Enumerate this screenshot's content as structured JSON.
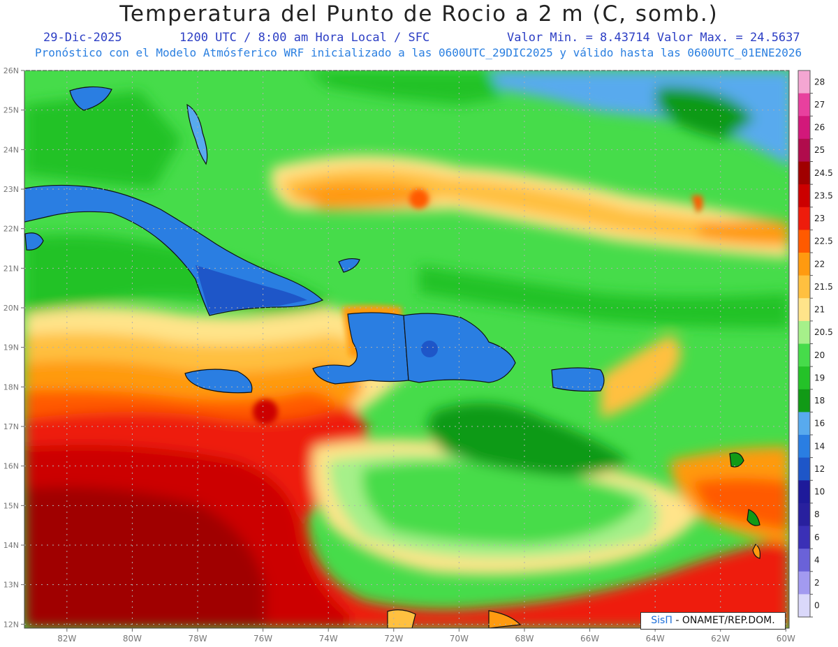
{
  "header": {
    "title": "Temperatura del Punto de Rocio a 2 m (C, somb.)",
    "date": "29-Dic-2025",
    "time": "1200 UTC / 8:00 am Hora Local / SFC",
    "minmax": "Valor Min. = 8.43714  Valor Max. = 24.5637",
    "forecast_info": "Pronóstico con el Modelo Atmósferico WRF inicializado a las 0600UTC_29DIC2025 y válido hasta las  0600UTC_01ENE2026"
  },
  "map": {
    "lon_labels": [
      "82W",
      "80W",
      "78W",
      "76W",
      "74W",
      "72W",
      "70W",
      "68W",
      "66W",
      "64W",
      "62W",
      "60W"
    ],
    "lat_labels": [
      "26N",
      "25N",
      "24N",
      "23N",
      "22N",
      "21N",
      "20N",
      "19N",
      "18N",
      "17N",
      "16N",
      "15N",
      "14N",
      "13N",
      "12N"
    ],
    "lon_range": [
      -83.3,
      -59.9
    ],
    "lat_range": [
      11.9,
      26.0
    ],
    "ocean_color": "#3fd64a",
    "land_outline_color": "#111111",
    "grid_color": "#b0b0b0"
  },
  "colorbar": {
    "labels": [
      "28",
      "27",
      "26",
      "25",
      "24.5",
      "23.5",
      "23",
      "22.5",
      "22",
      "21.5",
      "21",
      "20.5",
      "20",
      "19",
      "18",
      "16",
      "14",
      "12",
      "10",
      "8",
      "6",
      "4",
      "2",
      "0"
    ],
    "colors": [
      "#f4a6d2",
      "#e8409e",
      "#d2187a",
      "#b00c4c",
      "#a00000",
      "#cc0000",
      "#ee1c0c",
      "#ff5a00",
      "#ff9a10",
      "#ffc040",
      "#ffe48a",
      "#a6f08a",
      "#46dc4a",
      "#24c228",
      "#119a16",
      "#58aaee",
      "#2a7ee2",
      "#1e56c8",
      "#1e1a9a",
      "#28209e",
      "#3a30b6",
      "#6a62d8",
      "#a29af0",
      "#dad8fa"
    ]
  },
  "credit": {
    "brand": "SisΠ",
    "text": " - ONAMET/REP.DOM."
  }
}
